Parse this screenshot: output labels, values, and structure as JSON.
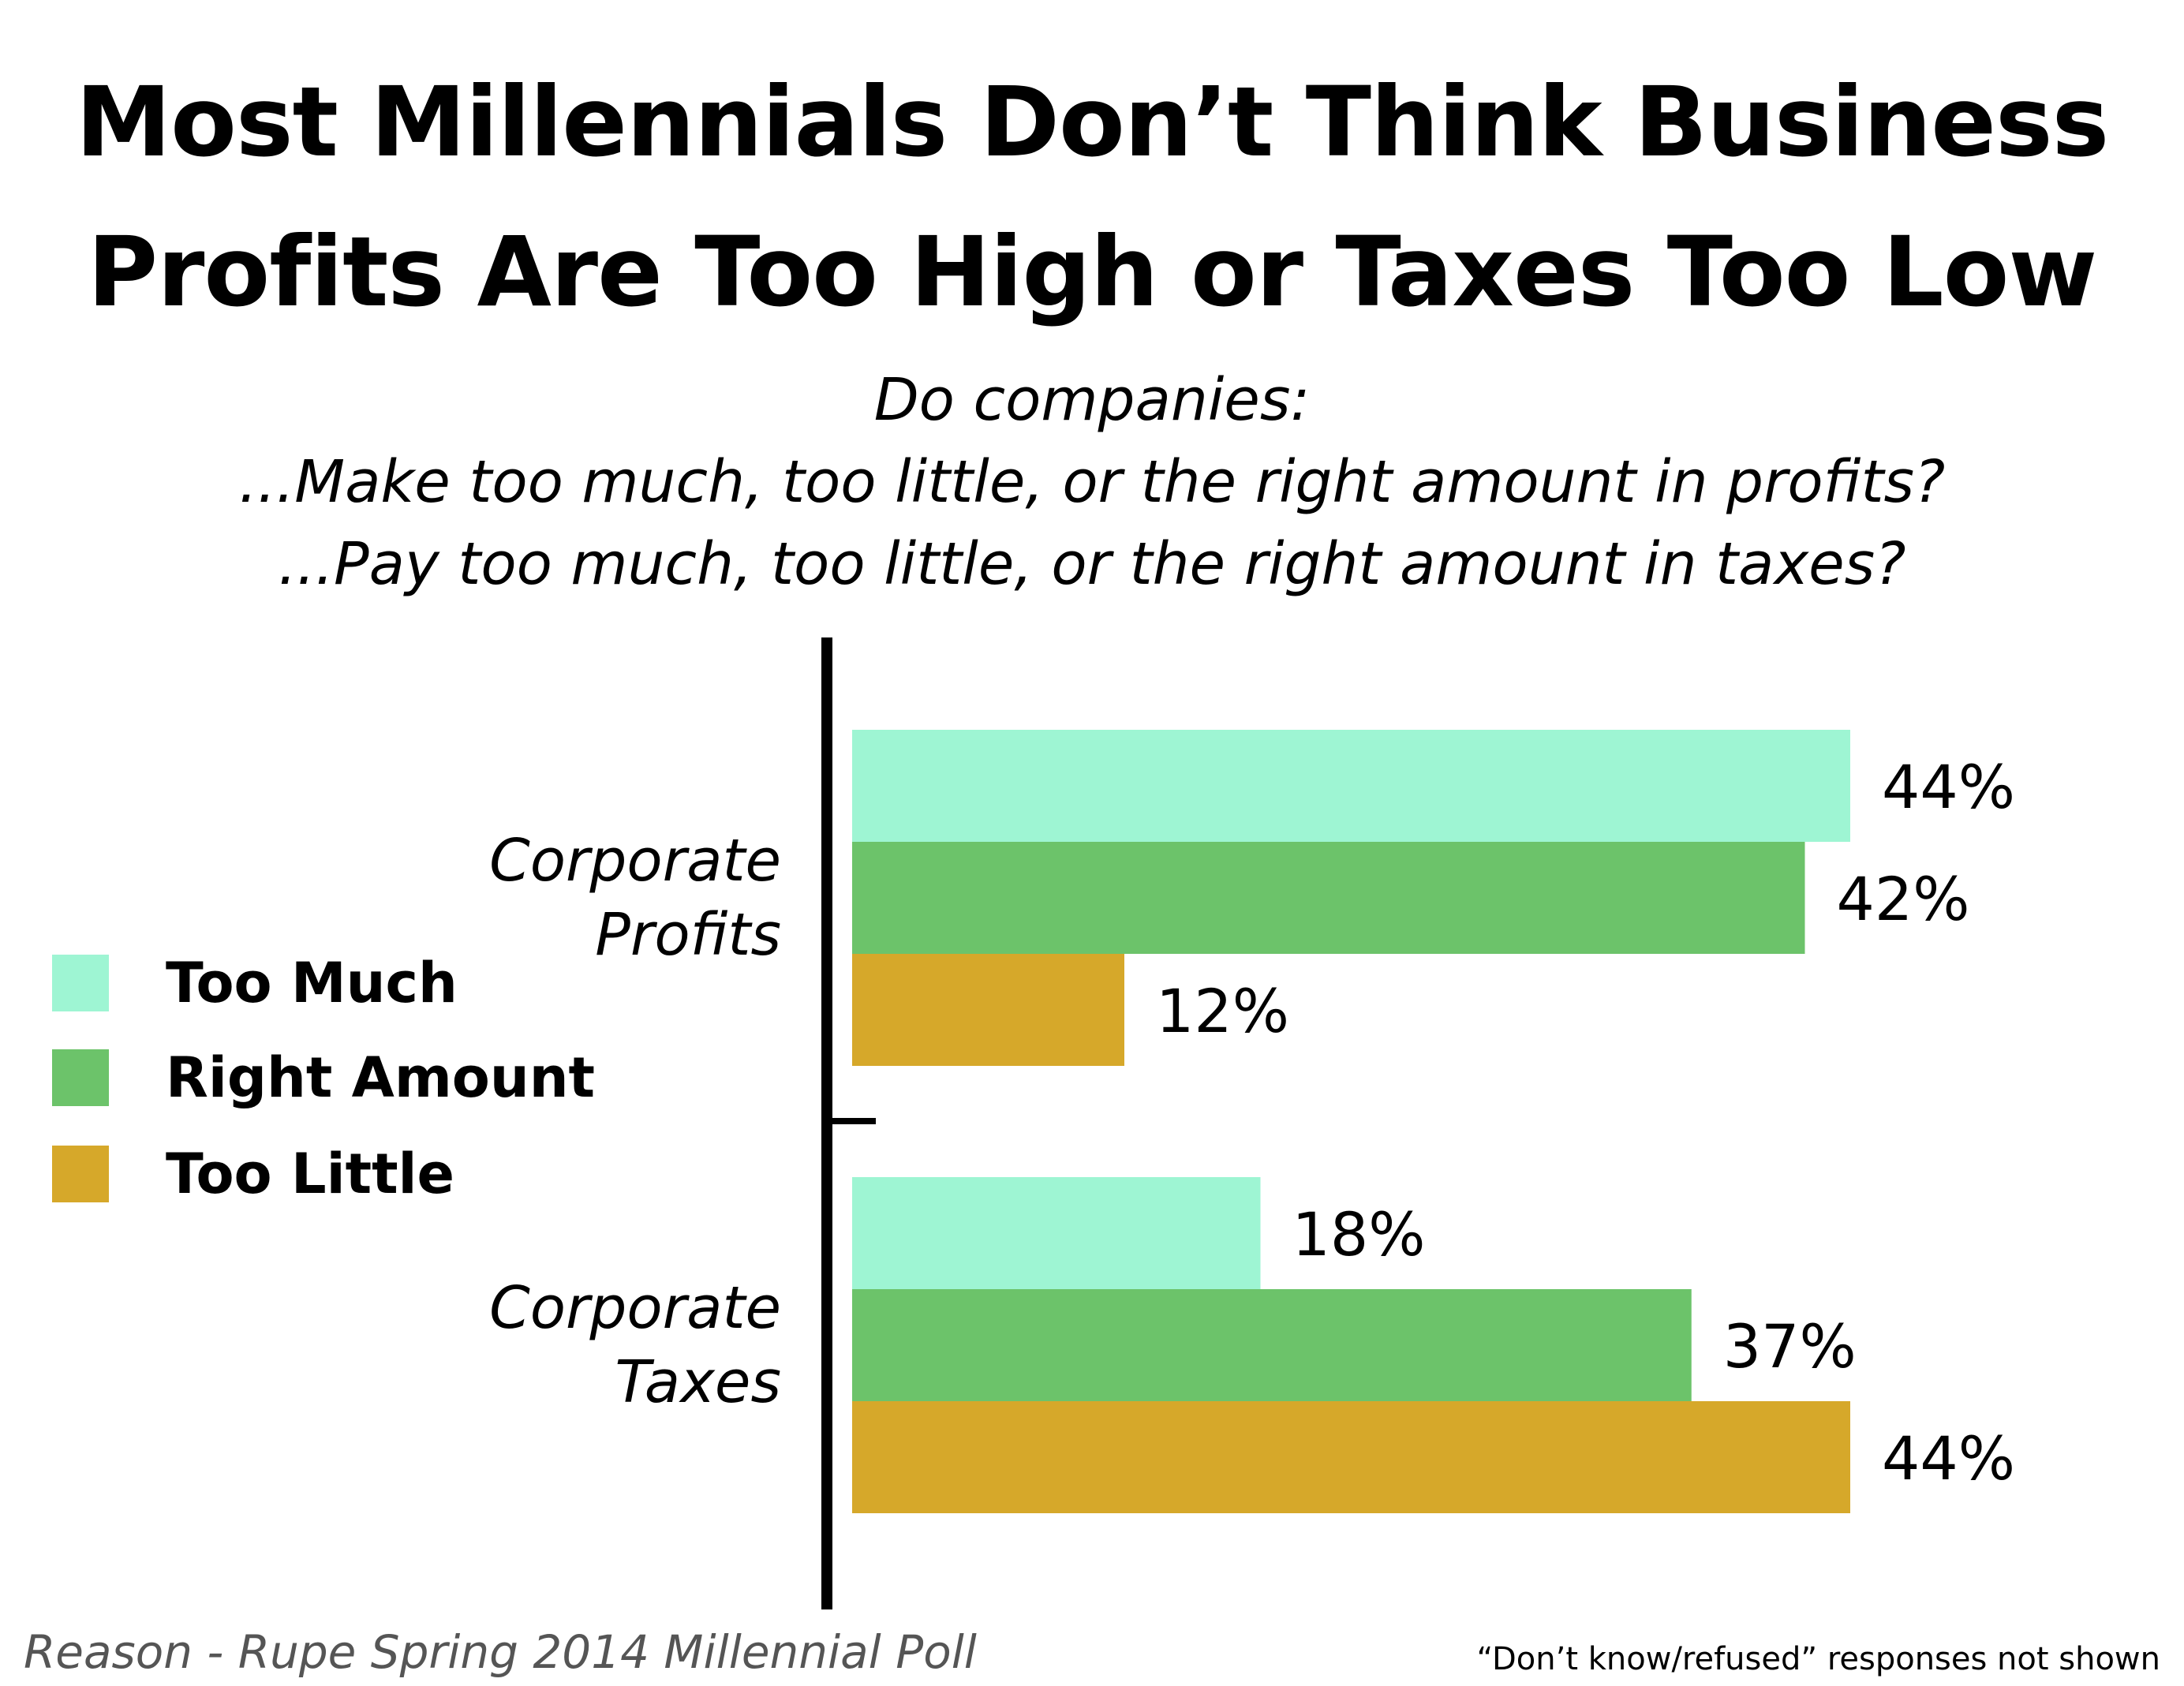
{
  "title_lines": [
    "Most Millennials Don’t Think Business",
    "Profits Are Too High or Taxes Too Low"
  ],
  "subtitle_lines": [
    "Do companies:",
    "...Make too much, too little, or the right amount in profits?",
    "...Pay too much, too little, or the right amount in taxes?"
  ],
  "source": "Reason - Rupe Spring 2014 Millennial Poll",
  "note": "“Don’t know/refused” responses not shown",
  "colors": {
    "too_much": "#9ef5d3",
    "right_amount": "#6cc36a",
    "too_little": "#d6a82a",
    "axis": "#000000"
  },
  "chart_data": {
    "type": "bar",
    "orientation": "horizontal",
    "categories": [
      [
        "Corporate",
        "Profits"
      ],
      [
        "Corporate",
        "Taxes"
      ]
    ],
    "series": [
      {
        "name": "Too Much",
        "values": [
          44,
          18
        ],
        "labels": [
          "44%",
          "18%"
        ]
      },
      {
        "name": "Right Amount",
        "values": [
          42,
          37
        ],
        "labels": [
          "42%",
          "37%"
        ]
      },
      {
        "name": "Too Little",
        "values": [
          12,
          44
        ],
        "labels": [
          "12%",
          "44%"
        ]
      }
    ],
    "unit": "%",
    "legend_position": "left",
    "grid": false
  }
}
